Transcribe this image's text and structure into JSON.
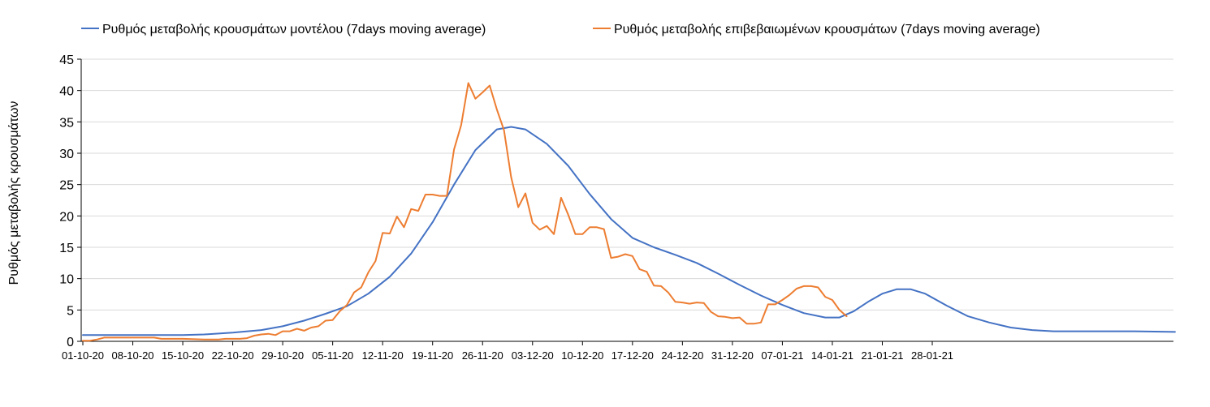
{
  "chart_data": {
    "type": "line",
    "title": "",
    "xlabel": "",
    "ylabel": "Ρυθμός μεταβολής κρουσμάτων",
    "ylim": [
      0,
      45
    ],
    "yticks": [
      0,
      5,
      10,
      15,
      20,
      25,
      30,
      35,
      40,
      45
    ],
    "grid": "horizontal",
    "legend_position": "top",
    "x_start_date": "2020-10-01",
    "x_end_date": "2021-01-31",
    "x_tick_labels": [
      "01-10-20",
      "08-10-20",
      "15-10-20",
      "22-10-20",
      "29-10-20",
      "05-11-20",
      "12-11-20",
      "19-11-20",
      "26-11-20",
      "03-12-20",
      "10-12-20",
      "17-12-20",
      "24-12-20",
      "31-12-20",
      "07-01-21",
      "14-01-21",
      "21-01-21",
      "28-01-21"
    ],
    "series": [
      {
        "name": "Ρυθμός μεταβολής κρουσμάτων μοντέλου (7days moving average)",
        "color": "#4472c4",
        "points": [
          [
            0,
            1.0
          ],
          [
            7,
            1.0
          ],
          [
            14,
            1.0
          ],
          [
            17,
            1.1
          ],
          [
            21,
            1.4
          ],
          [
            25,
            1.8
          ],
          [
            28,
            2.4
          ],
          [
            31,
            3.3
          ],
          [
            34,
            4.4
          ],
          [
            37,
            5.6
          ],
          [
            40,
            7.6
          ],
          [
            43,
            10.3
          ],
          [
            46,
            14.0
          ],
          [
            49,
            19.0
          ],
          [
            52,
            25.0
          ],
          [
            55,
            30.5
          ],
          [
            58,
            33.8
          ],
          [
            60,
            34.2
          ],
          [
            62,
            33.8
          ],
          [
            65,
            31.5
          ],
          [
            68,
            28.0
          ],
          [
            71,
            23.5
          ],
          [
            74,
            19.5
          ],
          [
            77,
            16.5
          ],
          [
            80,
            15.0
          ],
          [
            83,
            13.8
          ],
          [
            86,
            12.5
          ],
          [
            89,
            10.8
          ],
          [
            92,
            9.0
          ],
          [
            95,
            7.3
          ],
          [
            98,
            5.8
          ],
          [
            101,
            4.5
          ],
          [
            104,
            3.8
          ],
          [
            106,
            3.8
          ],
          [
            108,
            4.8
          ],
          [
            110,
            6.3
          ],
          [
            112,
            7.6
          ],
          [
            114,
            8.3
          ],
          [
            116,
            8.3
          ],
          [
            118,
            7.6
          ],
          [
            121,
            5.7
          ],
          [
            124,
            4.0
          ],
          [
            127,
            3.0
          ],
          [
            130,
            2.2
          ],
          [
            133,
            1.8
          ],
          [
            136,
            1.6
          ],
          [
            140,
            1.6
          ],
          [
            147,
            1.6
          ],
          [
            153,
            1.5
          ]
        ]
      },
      {
        "name": "Ρυθμός μεταβολής επιβεβαιωμένων κρουσμάτων (7days moving average)",
        "color": "#ed7d31",
        "points": [
          [
            0,
            0.1
          ],
          [
            1,
            0.1
          ],
          [
            2,
            0.3
          ],
          [
            3,
            0.6
          ],
          [
            6,
            0.6
          ],
          [
            9,
            0.6
          ],
          [
            10,
            0.6
          ],
          [
            11,
            0.4
          ],
          [
            14,
            0.4
          ],
          [
            17,
            0.3
          ],
          [
            19,
            0.3
          ],
          [
            20,
            0.4
          ],
          [
            22,
            0.4
          ],
          [
            23,
            0.5
          ],
          [
            24,
            0.9
          ],
          [
            25,
            1.1
          ],
          [
            26,
            1.2
          ],
          [
            27,
            1.0
          ],
          [
            28,
            1.6
          ],
          [
            29,
            1.6
          ],
          [
            30,
            2.0
          ],
          [
            31,
            1.7
          ],
          [
            32,
            2.2
          ],
          [
            33,
            2.4
          ],
          [
            34,
            3.3
          ],
          [
            35,
            3.4
          ],
          [
            36,
            4.8
          ],
          [
            37,
            5.8
          ],
          [
            38,
            7.8
          ],
          [
            39,
            8.6
          ],
          [
            40,
            11.0
          ],
          [
            41,
            12.8
          ],
          [
            42,
            17.3
          ],
          [
            43,
            17.2
          ],
          [
            44,
            19.9
          ],
          [
            45,
            18.2
          ],
          [
            46,
            21.1
          ],
          [
            47,
            20.8
          ],
          [
            48,
            23.4
          ],
          [
            49,
            23.4
          ],
          [
            50,
            23.2
          ],
          [
            51,
            23.2
          ],
          [
            52,
            30.6
          ],
          [
            53,
            34.5
          ],
          [
            54,
            41.2
          ],
          [
            55,
            38.7
          ],
          [
            56,
            39.7
          ],
          [
            57,
            40.8
          ],
          [
            58,
            37.0
          ],
          [
            59,
            33.7
          ],
          [
            60,
            26.2
          ],
          [
            61,
            21.4
          ],
          [
            62,
            23.6
          ],
          [
            63,
            18.9
          ],
          [
            64,
            17.8
          ],
          [
            65,
            18.4
          ],
          [
            66,
            17.1
          ],
          [
            67,
            22.9
          ],
          [
            68,
            20.2
          ],
          [
            69,
            17.1
          ],
          [
            70,
            17.1
          ],
          [
            71,
            18.2
          ],
          [
            72,
            18.2
          ],
          [
            73,
            17.9
          ],
          [
            74,
            13.3
          ],
          [
            75,
            13.5
          ],
          [
            76,
            13.9
          ],
          [
            77,
            13.6
          ],
          [
            78,
            11.5
          ],
          [
            79,
            11.1
          ],
          [
            80,
            8.9
          ],
          [
            81,
            8.8
          ],
          [
            82,
            7.8
          ],
          [
            83,
            6.3
          ],
          [
            84,
            6.2
          ],
          [
            85,
            6.0
          ],
          [
            86,
            6.2
          ],
          [
            87,
            6.1
          ],
          [
            88,
            4.7
          ],
          [
            89,
            4.0
          ],
          [
            90,
            3.9
          ],
          [
            91,
            3.7
          ],
          [
            92,
            3.8
          ],
          [
            93,
            2.8
          ],
          [
            94,
            2.8
          ],
          [
            95,
            3.0
          ],
          [
            96,
            5.9
          ],
          [
            97,
            5.9
          ],
          [
            98,
            6.6
          ],
          [
            99,
            7.4
          ],
          [
            100,
            8.4
          ],
          [
            101,
            8.8
          ],
          [
            102,
            8.8
          ],
          [
            103,
            8.6
          ],
          [
            104,
            7.1
          ],
          [
            105,
            6.6
          ],
          [
            106,
            5.0
          ],
          [
            107,
            4.0
          ]
        ]
      }
    ]
  }
}
